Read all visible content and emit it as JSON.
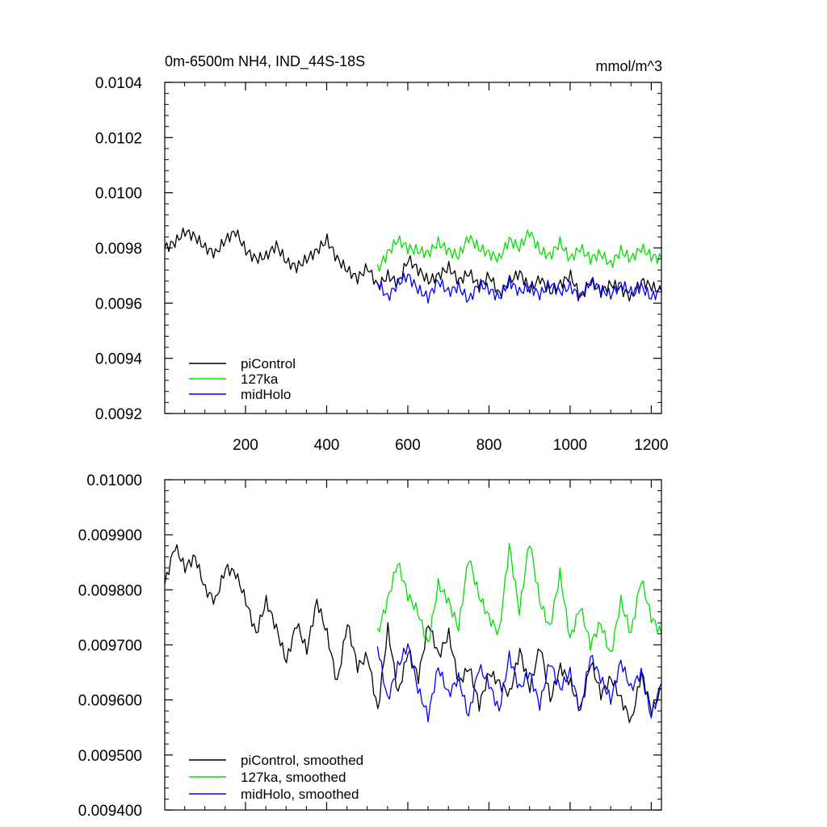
{
  "chart_data": [
    {
      "type": "line",
      "title": "0m-6500m NH4, IND_44S-18S",
      "units": "mmol/m^3",
      "xlim": [
        1,
        1225
      ],
      "ylim": [
        0.0092,
        0.0104
      ],
      "x_ticks": [
        200,
        400,
        600,
        800,
        1000,
        1200
      ],
      "x_tick_labels": [
        "200",
        "400",
        "600",
        "800",
        "1000",
        "1200"
      ],
      "y_ticks": [
        0.0092,
        0.0094,
        0.0096,
        0.0098,
        0.01,
        0.0102,
        0.0104
      ],
      "y_tick_labels": [
        "0.0092",
        "0.0094",
        "0.0096",
        "0.0098",
        "0.0100",
        "0.0102",
        "0.0104"
      ],
      "legend_position": "bottom-left",
      "series": [
        {
          "name": "piControl",
          "color": "#000000",
          "x_start": 1,
          "x_end": 1225,
          "x_step": 25,
          "values": [
            0.0098,
            0.00982,
            0.00986,
            0.00984,
            0.0098,
            0.00978,
            0.00983,
            0.00986,
            0.00979,
            0.00976,
            0.00977,
            0.00981,
            0.00975,
            0.00973,
            0.00976,
            0.00979,
            0.00983,
            0.00976,
            0.00972,
            0.00969,
            0.00973,
            0.00966,
            0.0097,
            0.00967,
            0.00976,
            0.00972,
            0.00968,
            0.0097,
            0.00973,
            0.00968,
            0.00971,
            0.00966,
            0.0097,
            0.00963,
            0.00968,
            0.00971,
            0.00965,
            0.00969,
            0.00964,
            0.00967,
            0.0097,
            0.00962,
            0.00968,
            0.00964,
            0.00967,
            0.00965,
            0.00962,
            0.00968,
            0.00966,
            0.00964
          ]
        },
        {
          "name": "127ka",
          "color": "#00e000",
          "x_start": 525,
          "x_end": 1225,
          "x_step": 25,
          "values": [
            0.00972,
            0.00978,
            0.00983,
            0.0098,
            0.00979,
            0.00978,
            0.00982,
            0.00979,
            0.00977,
            0.00984,
            0.0098,
            0.00978,
            0.00976,
            0.00983,
            0.0098,
            0.00986,
            0.00979,
            0.00977,
            0.00982,
            0.00976,
            0.0098,
            0.00976,
            0.00978,
            0.00974,
            0.00979,
            0.00976,
            0.0098,
            0.00977,
            0.00976
          ]
        },
        {
          "name": "midHolo",
          "color": "#0000ff",
          "x_start": 525,
          "x_end": 1225,
          "x_step": 25,
          "values": [
            0.00968,
            0.00962,
            0.00967,
            0.0097,
            0.00965,
            0.00962,
            0.00968,
            0.00964,
            0.00966,
            0.00961,
            0.00967,
            0.00965,
            0.00962,
            0.00968,
            0.00964,
            0.00966,
            0.00963,
            0.00967,
            0.00964,
            0.00966,
            0.00962,
            0.00968,
            0.00965,
            0.00963,
            0.00967,
            0.00964,
            0.00966,
            0.00962,
            0.00965
          ]
        }
      ]
    },
    {
      "type": "line",
      "xlim": [
        1,
        1225
      ],
      "ylim": [
        0.0094,
        0.01
      ],
      "x_ticks": [
        200,
        400,
        600,
        800,
        1000,
        1200
      ],
      "y_ticks": [
        0.0094,
        0.0095,
        0.0096,
        0.0097,
        0.0098,
        0.0099,
        0.01
      ],
      "y_tick_labels": [
        "0.009400",
        "0.009500",
        "0.009600",
        "0.009700",
        "0.009800",
        "0.009900",
        "0.01000"
      ],
      "legend_position": "bottom-left",
      "series": [
        {
          "name": "piControl, smoothed",
          "color": "#000000",
          "x_start": 1,
          "x_end": 1225,
          "x_step": 25,
          "values": [
            0.00981,
            0.00988,
            0.00984,
            0.00986,
            0.0098,
            0.00978,
            0.00984,
            0.00983,
            0.00978,
            0.00972,
            0.00978,
            0.00973,
            0.00967,
            0.00974,
            0.00969,
            0.00978,
            0.00972,
            0.00963,
            0.00974,
            0.00966,
            0.00968,
            0.00958,
            0.00973,
            0.00961,
            0.00969,
            0.00964,
            0.00974,
            0.00968,
            0.00972,
            0.00963,
            0.00966,
            0.00959,
            0.00965,
            0.00963,
            0.00961,
            0.00969,
            0.00962,
            0.0097,
            0.0096,
            0.00966,
            0.00963,
            0.00958,
            0.00967,
            0.00961,
            0.00964,
            0.0096,
            0.00956,
            0.00965,
            0.00958,
            0.00962
          ]
        },
        {
          "name": "127ka, smoothed",
          "color": "#00e000",
          "x_start": 525,
          "x_end": 1225,
          "x_step": 25,
          "values": [
            0.00972,
            0.00978,
            0.00985,
            0.00979,
            0.00976,
            0.0097,
            0.00981,
            0.00978,
            0.00973,
            0.00986,
            0.00979,
            0.00975,
            0.00972,
            0.00988,
            0.00976,
            0.00989,
            0.00978,
            0.00973,
            0.00983,
            0.00971,
            0.00977,
            0.0097,
            0.00974,
            0.00968,
            0.00978,
            0.00972,
            0.00982,
            0.00975,
            0.00972
          ]
        },
        {
          "name": "midHolo, smoothed",
          "color": "#0000ff",
          "x_start": 525,
          "x_end": 1225,
          "x_step": 25,
          "values": [
            0.0097,
            0.0096,
            0.00966,
            0.0097,
            0.00962,
            0.00957,
            0.00966,
            0.00961,
            0.00964,
            0.00957,
            0.00966,
            0.00963,
            0.00958,
            0.00968,
            0.00962,
            0.00965,
            0.00959,
            0.00967,
            0.00962,
            0.00965,
            0.00958,
            0.00968,
            0.00964,
            0.0096,
            0.00967,
            0.00962,
            0.00965,
            0.00957,
            0.00963
          ]
        }
      ]
    }
  ]
}
